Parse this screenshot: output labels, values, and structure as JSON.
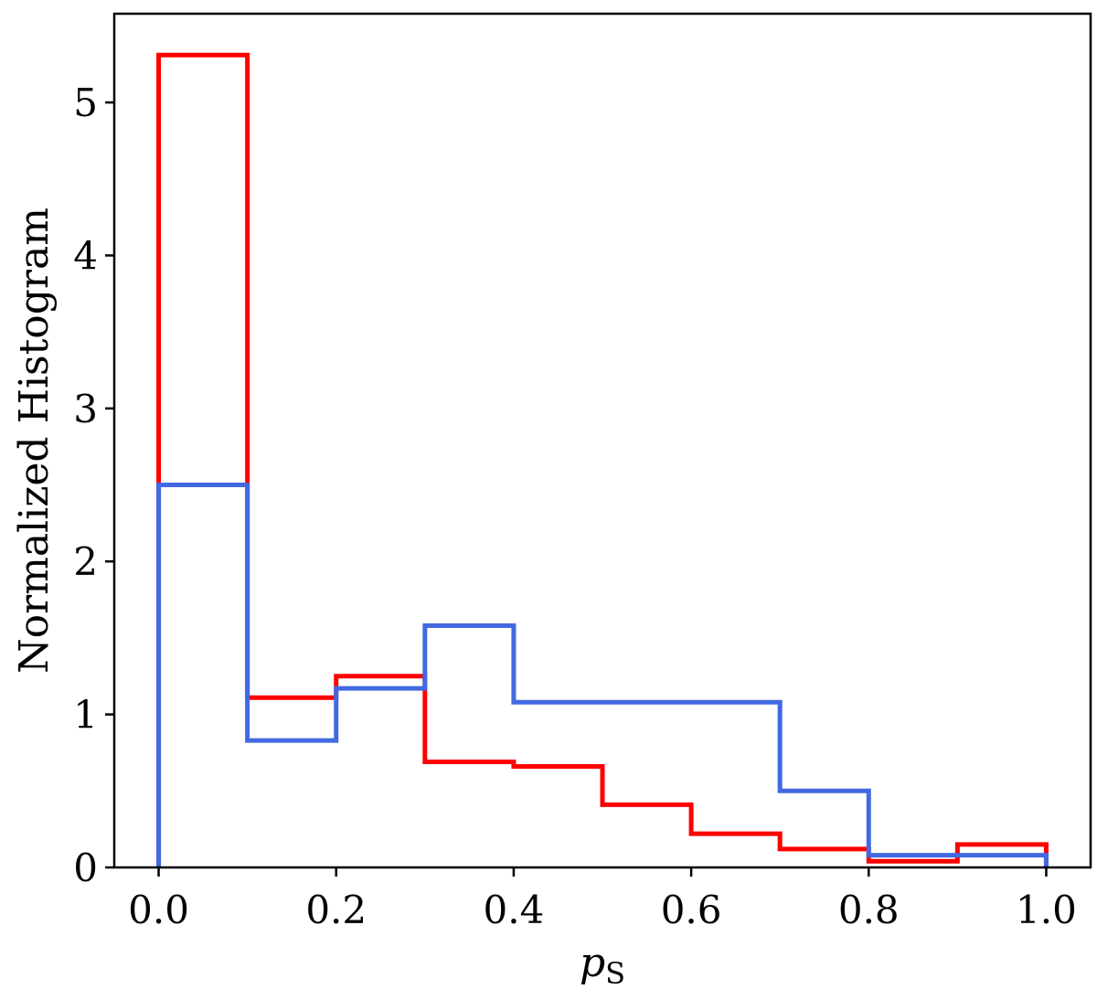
{
  "chart_data": {
    "type": "histogram-step",
    "xlabel": "p",
    "xlabel_subscript": "S",
    "ylabel": "Normalized Histogram",
    "xlim": [
      -0.05,
      1.05
    ],
    "ylim": [
      0,
      5.58
    ],
    "xticks": [
      0.0,
      0.2,
      0.4,
      0.6,
      0.8,
      1.0
    ],
    "xtick_labels": [
      "0.0",
      "0.2",
      "0.4",
      "0.6",
      "0.8",
      "1.0"
    ],
    "yticks": [
      0,
      1,
      2,
      3,
      4,
      5
    ],
    "ytick_labels": [
      "0",
      "1",
      "2",
      "3",
      "4",
      "5"
    ],
    "bin_edges": [
      0.0,
      0.1,
      0.2,
      0.3,
      0.4,
      0.5,
      0.6,
      0.7,
      0.8,
      0.9,
      1.0
    ],
    "series": [
      {
        "color": "#ff0000",
        "values": [
          5.31,
          1.11,
          1.25,
          0.69,
          0.66,
          0.41,
          0.22,
          0.12,
          0.04,
          0.15
        ]
      },
      {
        "color": "#4169e1",
        "values": [
          2.5,
          0.83,
          1.17,
          1.58,
          1.08,
          1.08,
          1.08,
          0.5,
          0.08,
          0.08
        ]
      }
    ],
    "grid": false,
    "legend": "none"
  }
}
